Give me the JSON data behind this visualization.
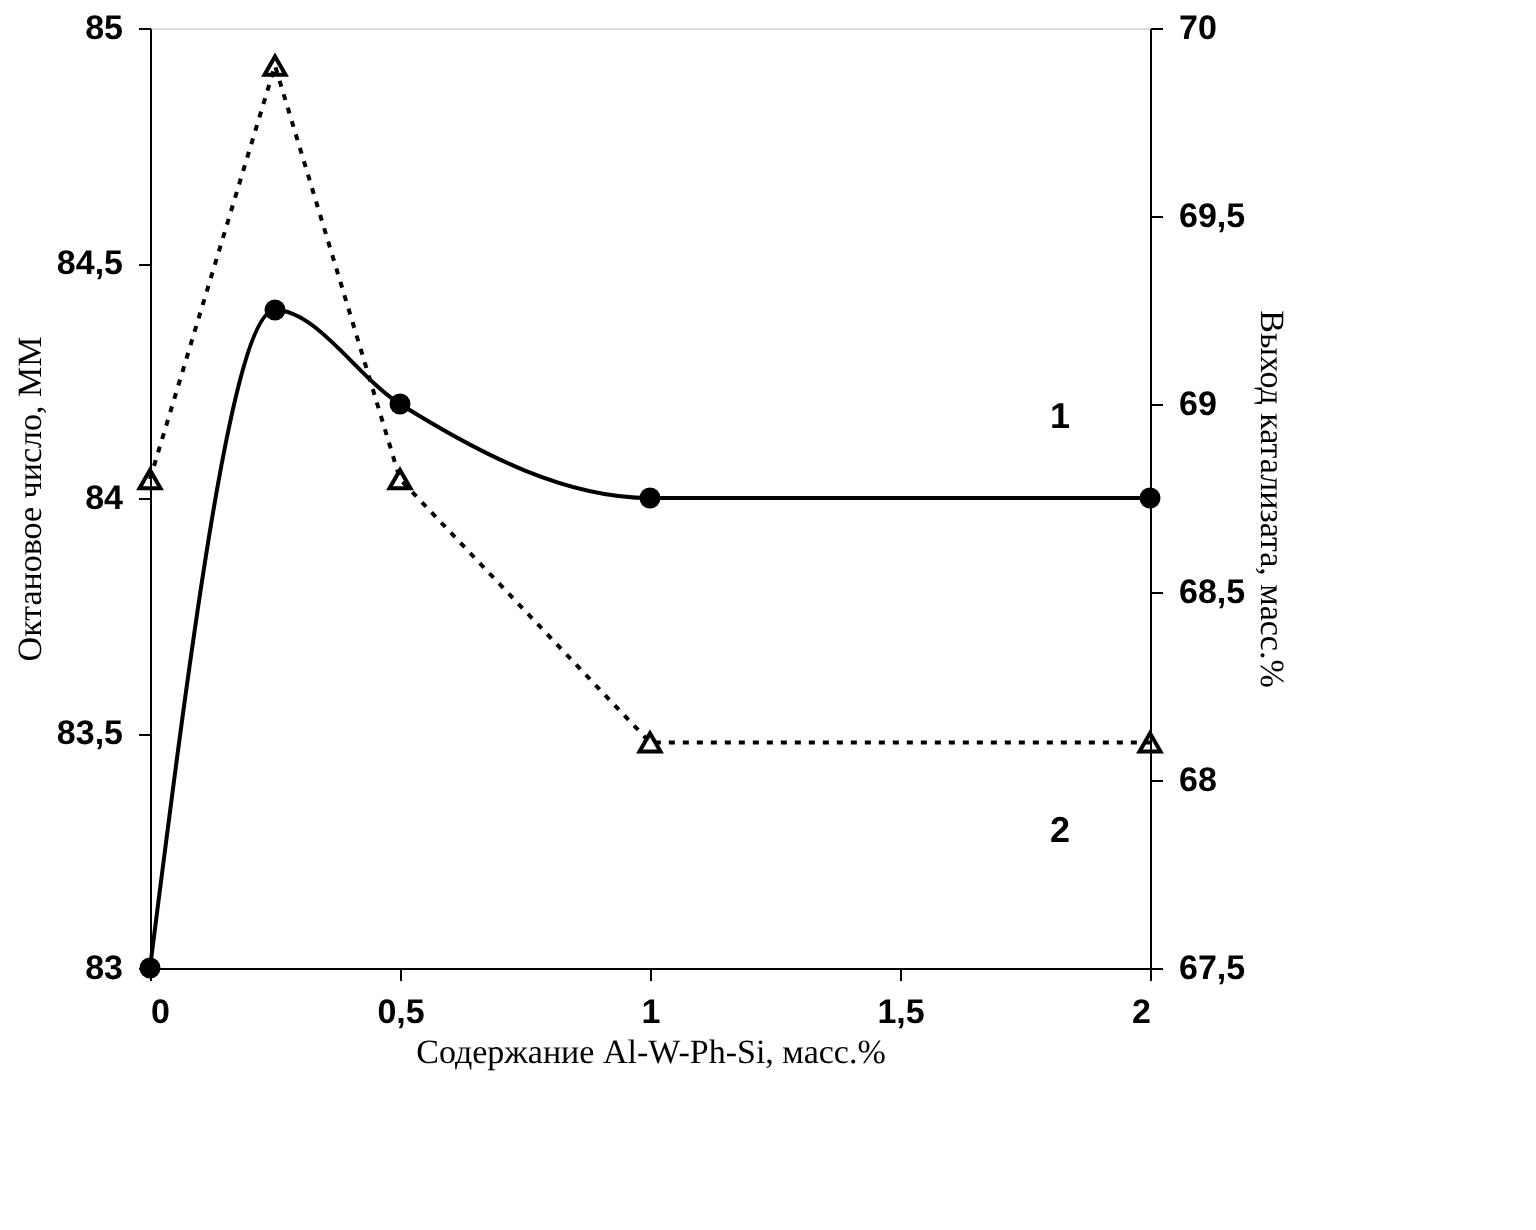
{
  "chart_data": {
    "type": "line",
    "xlabel": "Содержание Al-W-Ph-Si, масс.%",
    "ylabel": "Октановое число, ММ",
    "y2label": "Выход катализата, масс.%",
    "xlim": [
      0,
      2
    ],
    "xticks": [
      0,
      {
        "value": 0.5,
        "label": "0,5"
      },
      1,
      {
        "value": 1.5,
        "label": "1,5"
      },
      2
    ],
    "ylim": [
      83,
      85
    ],
    "yticks": [
      83,
      {
        "value": 83.5,
        "label": "83,5"
      },
      84,
      {
        "value": 84.5,
        "label": "84,5"
      },
      85
    ],
    "y2lim": [
      67.5,
      70
    ],
    "y2ticks": [
      {
        "value": 67.5,
        "label": "67,5"
      },
      68,
      {
        "value": 68.5,
        "label": "68,5"
      },
      69,
      {
        "value": 69.5,
        "label": "69,5"
      },
      70
    ],
    "grid": false,
    "legend": false,
    "series": [
      {
        "name": "1",
        "color": "#000000",
        "x": [
          0,
          0.25,
          0.5,
          1,
          2
        ],
        "values": [
          83,
          84.4,
          84.2,
          84,
          84
        ],
        "marker": "circle",
        "line_style": "solid"
      },
      {
        "name": "2",
        "color": "#000000",
        "x": [
          0,
          0.25,
          0.5,
          1,
          2
        ],
        "values": [
          68.8,
          69.9,
          68.8,
          68.1,
          68.1
        ],
        "axis": "y2",
        "marker": "triangle",
        "line_style": "dotted"
      }
    ]
  }
}
